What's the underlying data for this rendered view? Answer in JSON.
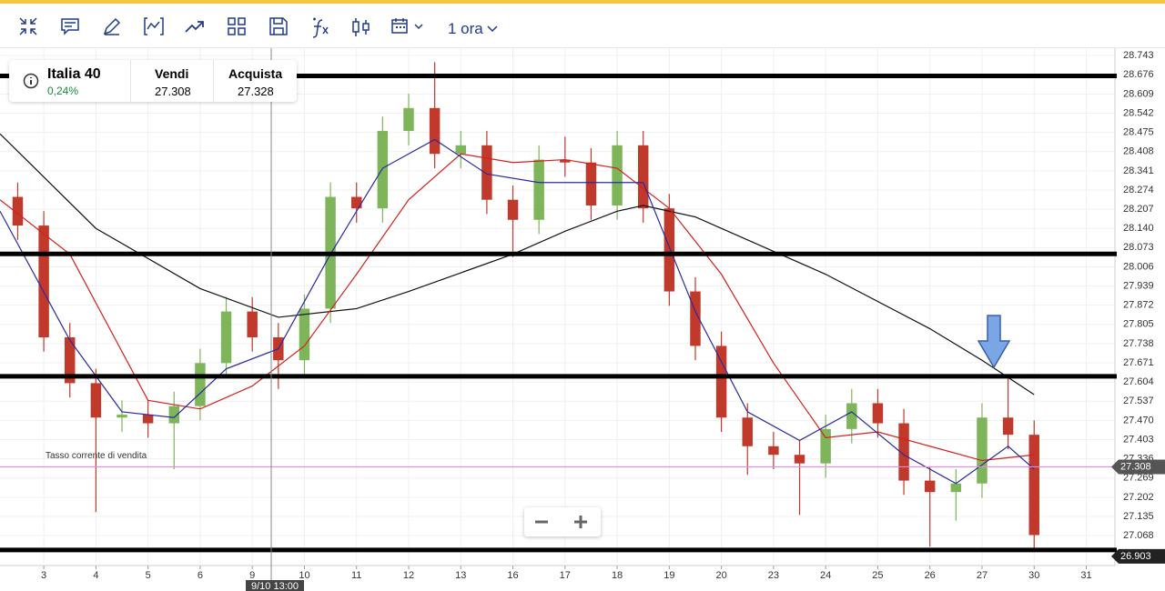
{
  "toolbar": {
    "interval": "1 ora"
  },
  "instrument": {
    "name": "Italia 40",
    "change": "0,24%",
    "sell_label": "Vendi",
    "sell": "27.308",
    "buy_label": "Acquista",
    "buy": "27.328"
  },
  "chart_data": {
    "type": "candlestick",
    "x": [
      -0.5,
      0,
      0.5,
      1,
      1.5,
      2,
      2.5,
      3,
      3.5,
      4,
      4.5,
      5,
      5.5,
      6,
      6.5,
      7,
      7.5,
      8,
      8.5,
      9,
      9.5,
      10,
      10.5,
      11,
      11.5,
      12,
      12.5,
      13,
      13.5,
      14,
      14.5,
      15,
      15.5,
      16,
      16.5,
      17,
      17.5,
      18,
      18.5,
      19
    ],
    "open": [
      28.25,
      28.15,
      27.76,
      27.6,
      27.48,
      27.49,
      27.46,
      27.52,
      27.67,
      27.85,
      27.76,
      27.68,
      27.86,
      28.25,
      28.21,
      28.48,
      28.56,
      28.4,
      28.43,
      28.24,
      28.17,
      28.38,
      28.37,
      28.22,
      28.43,
      28.21,
      27.92,
      27.73,
      27.48,
      27.38,
      27.35,
      27.32,
      27.44,
      27.53,
      27.46,
      27.26,
      27.22,
      27.25,
      27.48,
      27.42
    ],
    "high": [
      28.3,
      28.2,
      27.81,
      27.65,
      27.54,
      27.54,
      27.57,
      27.72,
      27.9,
      27.9,
      27.81,
      27.91,
      28.3,
      28.3,
      28.53,
      28.61,
      28.72,
      28.48,
      28.48,
      28.29,
      28.43,
      28.46,
      28.42,
      28.48,
      28.48,
      28.26,
      27.97,
      27.78,
      27.53,
      27.43,
      27.4,
      27.49,
      27.58,
      27.58,
      27.51,
      27.31,
      27.3,
      27.53,
      27.62,
      27.47
    ],
    "low": [
      28.1,
      27.71,
      27.55,
      27.15,
      27.43,
      27.41,
      27.3,
      27.47,
      27.62,
      27.71,
      27.58,
      27.63,
      27.81,
      28.16,
      28.16,
      28.43,
      28.35,
      28.35,
      28.19,
      28.04,
      28.12,
      28.32,
      28.17,
      28.17,
      28.16,
      27.87,
      27.68,
      27.43,
      27.28,
      27.3,
      27.14,
      27.27,
      27.39,
      27.41,
      27.21,
      27.03,
      27.12,
      27.2,
      27.37,
      27.02
    ],
    "close": [
      28.15,
      27.76,
      27.6,
      27.48,
      27.49,
      27.46,
      27.52,
      27.67,
      27.85,
      27.76,
      27.68,
      27.86,
      28.25,
      28.21,
      28.48,
      28.56,
      28.4,
      28.43,
      28.24,
      28.17,
      28.38,
      28.37,
      28.22,
      28.43,
      28.21,
      27.92,
      27.73,
      27.48,
      27.38,
      27.35,
      27.32,
      27.44,
      27.53,
      27.46,
      27.26,
      27.22,
      27.25,
      27.48,
      27.42,
      27.07
    ],
    "up_color": "#7fb55a",
    "down_color": "#c0392b",
    "lines": [
      {
        "color": "#111111",
        "x": [
          -0.84,
          1,
          3,
          4.5,
          6,
          7,
          9,
          10,
          11,
          11.5,
          12.5,
          14,
          15,
          17,
          18,
          19
        ],
        "values": [
          28.47,
          28.14,
          27.93,
          27.83,
          27.86,
          27.92,
          28.05,
          28.13,
          28.2,
          28.22,
          28.18,
          28.06,
          27.98,
          27.79,
          27.68,
          27.56
        ]
      },
      {
        "color": "#d62020",
        "x": [
          -0.84,
          0.5,
          2,
          3,
          4,
          5,
          6,
          7,
          8,
          9,
          10,
          11,
          12,
          13,
          14,
          15,
          16,
          17,
          18,
          19
        ],
        "values": [
          28.24,
          28.05,
          27.54,
          27.51,
          27.59,
          27.73,
          27.98,
          28.24,
          28.4,
          28.37,
          28.38,
          28.35,
          28.21,
          27.98,
          27.67,
          27.41,
          27.43,
          27.38,
          27.33,
          27.35
        ]
      },
      {
        "color": "#2a2aa0",
        "x": [
          -0.84,
          0.5,
          1.5,
          2.5,
          3.5,
          4.5,
          5.5,
          6.5,
          7.5,
          8.5,
          9.5,
          10.5,
          11.5,
          12.5,
          13.5,
          14.5,
          15.5,
          16.5,
          17.5,
          18.5,
          19
        ],
        "values": [
          28.2,
          27.75,
          27.5,
          27.48,
          27.65,
          27.72,
          28.05,
          28.35,
          28.45,
          28.33,
          28.3,
          28.3,
          28.3,
          27.85,
          27.5,
          27.4,
          27.5,
          27.35,
          27.25,
          27.38,
          27.3
        ]
      }
    ],
    "levels": [
      28.672,
      28.051,
      27.624,
      27.018
    ],
    "current_price": 27.308,
    "bottom_tag": "26.903",
    "annotation": "Tasso corrente di vendita",
    "crosshair_label": "9/10 13:00",
    "xlim": [
      -0.84,
      20.55
    ],
    "xticks": [
      {
        "value": 0,
        "label": "3"
      },
      {
        "value": 1,
        "label": "4"
      },
      {
        "value": 2,
        "label": "5"
      },
      {
        "value": 3,
        "label": "6"
      },
      {
        "value": 4,
        "label": "9"
      },
      {
        "value": 5,
        "label": "10"
      },
      {
        "value": 6,
        "label": "11"
      },
      {
        "value": 7,
        "label": "12"
      },
      {
        "value": 8,
        "label": "13"
      },
      {
        "value": 9,
        "label": "16"
      },
      {
        "value": 10,
        "label": "17"
      },
      {
        "value": 11,
        "label": "18"
      },
      {
        "value": 12,
        "label": "19"
      },
      {
        "value": 13,
        "label": "20"
      },
      {
        "value": 14,
        "label": "23"
      },
      {
        "value": 15,
        "label": "24"
      },
      {
        "value": 16,
        "label": "25"
      },
      {
        "value": 17,
        "label": "26"
      },
      {
        "value": 18,
        "label": "27"
      },
      {
        "value": 19,
        "label": "30"
      },
      {
        "value": 20,
        "label": "31"
      }
    ],
    "ylim": [
      26.97,
      28.772
    ],
    "yticks": [
      28.743,
      28.676,
      28.609,
      28.542,
      28.475,
      28.408,
      28.341,
      28.274,
      28.207,
      {
        "value": 28.14,
        "label": "28.140"
      },
      28.073,
      28.006,
      27.939,
      27.872,
      27.805,
      27.738,
      27.671,
      27.604,
      27.537,
      {
        "value": 27.47,
        "label": "27.470"
      },
      27.403,
      27.336,
      27.269,
      27.202,
      27.135,
      27.068
    ]
  }
}
